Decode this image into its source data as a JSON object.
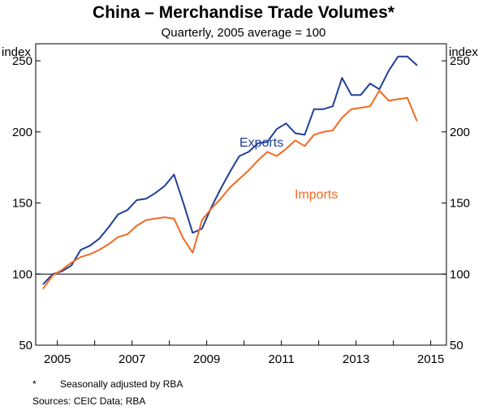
{
  "chart_data": {
    "type": "line",
    "title": "China – Merchandise Trade Volumes*",
    "subtitle": "Quarterly, 2005 average = 100",
    "ylabel_left": "index",
    "ylabel_right": "index",
    "ylim": [
      50,
      262
    ],
    "yticks": [
      50,
      100,
      150,
      200,
      250
    ],
    "xlim": [
      2004.42,
      2015.42
    ],
    "xticks": [
      2005,
      2007,
      2009,
      2011,
      2013,
      2015
    ],
    "reference_line": 100,
    "footnote_marker": "*",
    "footnote": "Seasonally adjusted by RBA",
    "sources": "Sources:  CEIC Data; RBA",
    "series": [
      {
        "name": "Exports",
        "color": "#1f3f99",
        "x": [
          2004.625,
          2004.875,
          2005.125,
          2005.375,
          2005.625,
          2005.875,
          2006.125,
          2006.375,
          2006.625,
          2006.875,
          2007.125,
          2007.375,
          2007.625,
          2007.875,
          2008.125,
          2008.375,
          2008.625,
          2008.875,
          2009.125,
          2009.375,
          2009.625,
          2009.875,
          2010.125,
          2010.375,
          2010.625,
          2010.875,
          2011.125,
          2011.375,
          2011.625,
          2011.875,
          2012.125,
          2012.375,
          2012.625,
          2012.875,
          2013.125,
          2013.375,
          2013.625,
          2013.875,
          2014.125,
          2014.375,
          2014.625,
          2014.875,
          2015.125
        ],
        "values": [
          93,
          100,
          102,
          106,
          117,
          120,
          125,
          133,
          142,
          145,
          152,
          153,
          157,
          162,
          170,
          150,
          129,
          132,
          147,
          160,
          172,
          183,
          186,
          192,
          193,
          202,
          206,
          199,
          198,
          216,
          216,
          218,
          238,
          226,
          226,
          234,
          230,
          243,
          253,
          253,
          247,
          null,
          null
        ]
      },
      {
        "name": "Imports",
        "color": "#f26a21",
        "x": [
          2004.625,
          2004.875,
          2005.125,
          2005.375,
          2005.625,
          2005.875,
          2006.125,
          2006.375,
          2006.625,
          2006.875,
          2007.125,
          2007.375,
          2007.625,
          2007.875,
          2008.125,
          2008.375,
          2008.625,
          2008.875,
          2009.125,
          2009.375,
          2009.625,
          2009.875,
          2010.125,
          2010.375,
          2010.625,
          2010.875,
          2011.125,
          2011.375,
          2011.625,
          2011.875,
          2012.125,
          2012.375,
          2012.625,
          2012.875,
          2013.125,
          2013.375,
          2013.625,
          2013.875,
          2014.125,
          2014.375,
          2014.625,
          2014.875,
          2015.125
        ],
        "values": [
          90,
          99,
          103,
          108,
          112,
          114,
          117,
          121,
          126,
          128,
          134,
          138,
          139,
          140,
          139,
          125,
          115,
          138,
          146,
          153,
          161,
          167,
          173,
          180,
          186,
          183,
          188,
          194,
          190,
          198,
          200,
          201,
          210,
          216,
          217,
          218,
          229,
          222,
          223,
          224,
          208,
          null,
          null
        ]
      }
    ]
  }
}
